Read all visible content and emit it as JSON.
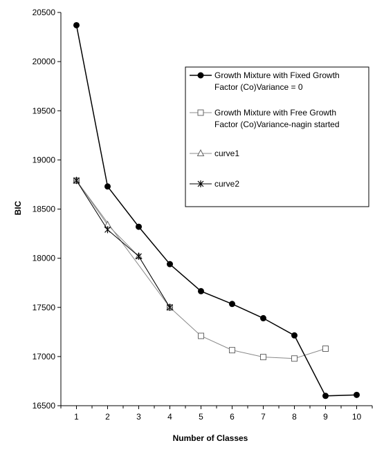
{
  "chart_data": {
    "type": "line",
    "title": "",
    "xlabel": "Number of Classes",
    "ylabel": "BIC",
    "xlim": [
      0.5,
      10.5
    ],
    "ylim": [
      16500,
      20500
    ],
    "x_ticks": [
      "1",
      "2",
      "3",
      "4",
      "5",
      "6",
      "7",
      "8",
      "9",
      "10"
    ],
    "y_ticks": [
      "16500",
      "17000",
      "17500",
      "18000",
      "18500",
      "19000",
      "19500",
      "20000",
      "20500"
    ],
    "grid": false,
    "legend_position": "top-right",
    "series": [
      {
        "name": "Growth Mixture with Fixed Growth Factor (Co)Variance = 0",
        "legend_lines": [
          "Growth Mixture with Fixed Growth",
          "Factor (Co)Variance = 0"
        ],
        "marker": "filled-circle",
        "line_style": "solid",
        "line_color": "#000000",
        "x": [
          1,
          2,
          3,
          4,
          5,
          6,
          7,
          8,
          9,
          10
        ],
        "values": [
          20370,
          18730,
          18320,
          17940,
          17665,
          17535,
          17390,
          17215,
          16600,
          16610
        ]
      },
      {
        "name": "Growth Mixture with Free Growth Factor (Co)Variance-nagin started",
        "legend_lines": [
          "Growth Mixture with Free Growth",
          "Factor (Co)Variance-nagin started"
        ],
        "marker": "open-square",
        "line_style": "solid",
        "line_color": "#888888",
        "x": [
          1,
          4,
          5,
          6,
          7,
          8,
          9
        ],
        "values": [
          18790,
          17500,
          17210,
          17065,
          16995,
          16980,
          17080
        ]
      },
      {
        "name": "curve1",
        "legend_lines": [
          "curve1"
        ],
        "marker": "open-triangle",
        "line_style": "solid",
        "line_color": "#888888",
        "x": [
          1,
          2,
          3,
          4
        ],
        "values": [
          18790,
          18340,
          18020,
          17500
        ]
      },
      {
        "name": "curve2",
        "legend_lines": [
          "curve2"
        ],
        "marker": "asterisk",
        "line_style": "solid",
        "line_color": "#000000",
        "x": [
          1,
          2,
          3,
          4
        ],
        "values": [
          18790,
          18290,
          18020,
          17500
        ]
      }
    ]
  }
}
